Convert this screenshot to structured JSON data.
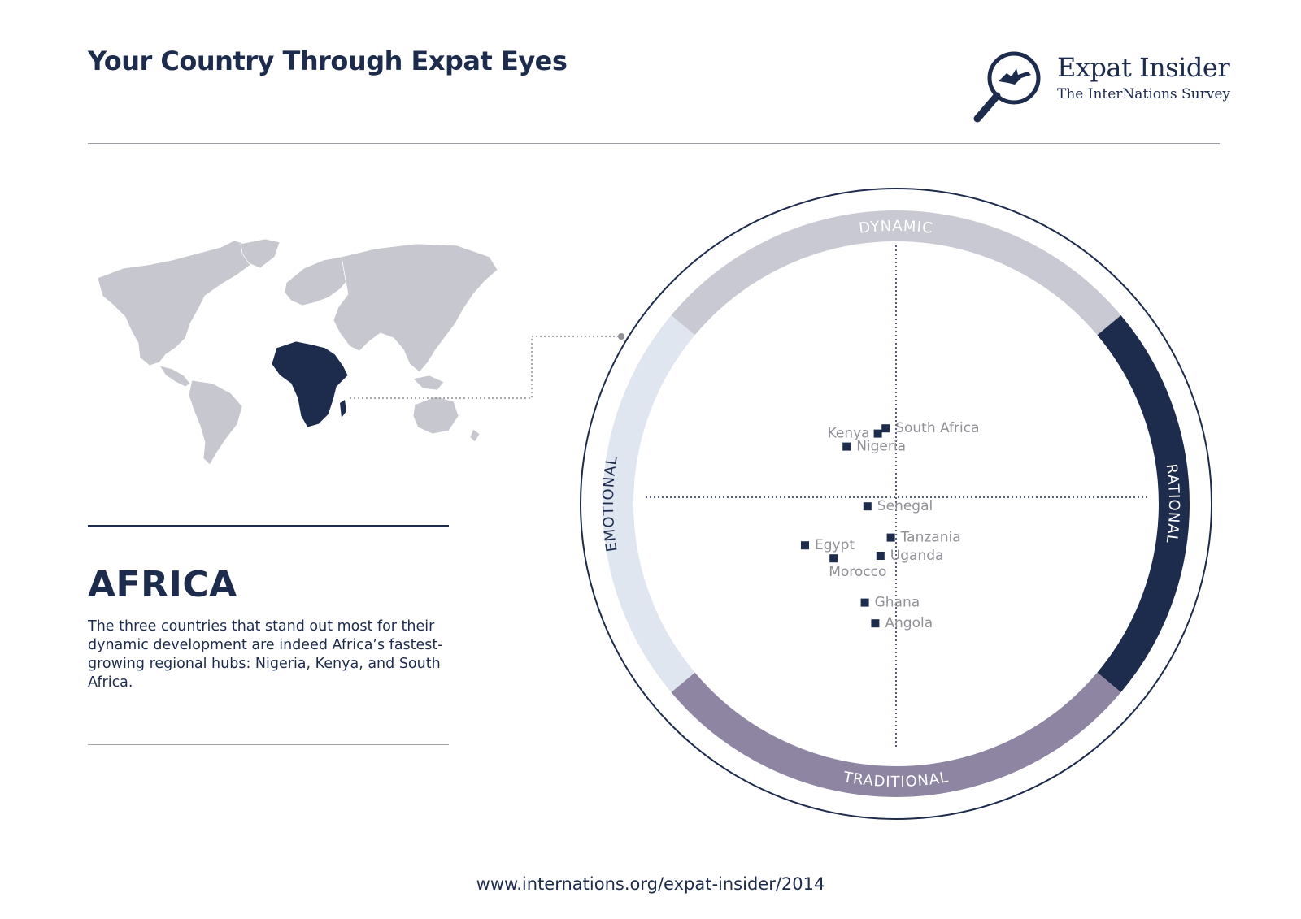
{
  "header": {
    "title": "Your Country Through Expat Eyes",
    "logo_name": "Expat Insider",
    "logo_subtitle": "The InterNations Survey"
  },
  "region": {
    "name": "AFRICA",
    "description": "The three countries that stand out most for their dynamic development are indeed Africa’s fastest-growing regional hubs: Nigeria, Kenya, and South Africa.",
    "highlighted_region": "Africa"
  },
  "footer": {
    "url": "www.internations.org/expat-insider/2014"
  },
  "colors": {
    "navy": "#1d2b4c",
    "dynamic": "#c8c9d2",
    "rational": "#1d2b4c",
    "traditional": "#8e85a3",
    "emotional": "#dfe6ef",
    "land": "#c6c7cf",
    "label": "#8f9096"
  },
  "chart_data": {
    "type": "scatter",
    "axes": {
      "top": "DYNAMIC",
      "right": "RATIONAL",
      "bottom": "TRADITIONAL",
      "left": "EMOTIONAL"
    },
    "xlim": [
      -1,
      1
    ],
    "ylim": [
      -1,
      1
    ],
    "points": [
      {
        "name": "South Africa",
        "x": -0.04,
        "y": 0.29
      },
      {
        "name": "Kenya",
        "x": -0.07,
        "y": 0.27
      },
      {
        "name": "Nigeria",
        "x": -0.19,
        "y": 0.22
      },
      {
        "name": "Senegal",
        "x": -0.11,
        "y": -0.01
      },
      {
        "name": "Tanzania",
        "x": -0.02,
        "y": -0.13
      },
      {
        "name": "Egypt",
        "x": -0.35,
        "y": -0.16
      },
      {
        "name": "Uganda",
        "x": -0.06,
        "y": -0.2
      },
      {
        "name": "Morocco",
        "x": -0.24,
        "y": -0.21
      },
      {
        "name": "Ghana",
        "x": -0.12,
        "y": -0.38
      },
      {
        "name": "Angola",
        "x": -0.08,
        "y": -0.46
      }
    ]
  }
}
